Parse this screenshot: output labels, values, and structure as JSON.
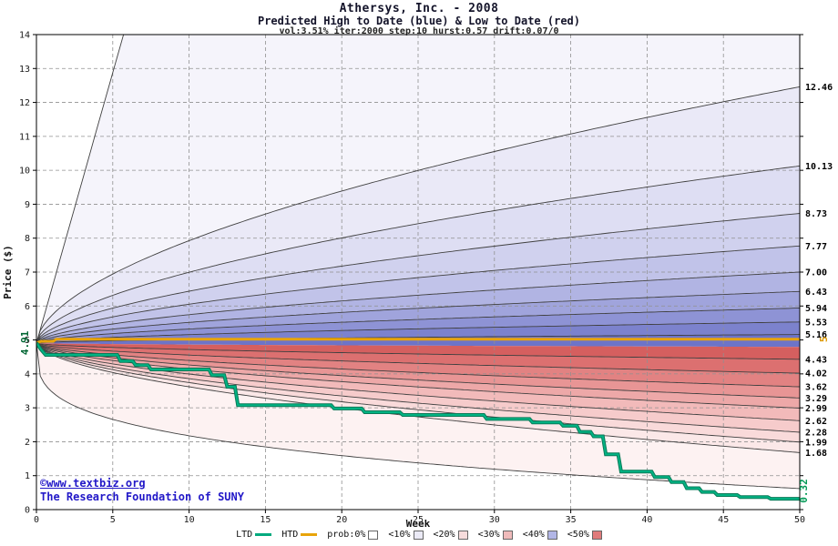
{
  "header": {
    "title": "Athersys, Inc. - 2008",
    "subtitle": "Predicted High to Date (blue) & Low to Date (red)",
    "params": "vol:3.51% iter:2000 step:10 hurst:0.57 drift:0.07/0"
  },
  "copyright": {
    "line1": "©www.textbiz.org",
    "line2": "The Research Foundation of SUNY"
  },
  "legend": {
    "items": [
      {
        "label": "LTD",
        "type": "line",
        "color": "#00aa7e"
      },
      {
        "label": "HTD",
        "type": "line",
        "color": "#e8a40a"
      },
      {
        "label": "prob:0%",
        "type": "box",
        "color": "#ffffff"
      },
      {
        "label": "<10%",
        "type": "box",
        "color": "#ebeaf6"
      },
      {
        "label": "<20%",
        "type": "box",
        "color": "#f7dcdc"
      },
      {
        "label": "<30%",
        "type": "box",
        "color": "#efbaba"
      },
      {
        "label": "<40%",
        "type": "box",
        "color": "#b2b6e6"
      },
      {
        "label": "<50%",
        "type": "box",
        "color": "#e07b7b"
      }
    ]
  },
  "chart_data": {
    "type": "line",
    "subtype": "probability-fan",
    "title": "Athersys, Inc. - 2008",
    "subtitle": "Predicted High to Date (blue) & Low to Date (red)",
    "params_note": "vol:3.51% iter:2000 step:10 hurst:0.57 drift:0.07/0",
    "xlabel": "Week",
    "ylabel": "Price ($)",
    "x_max": 50,
    "y_max": 14,
    "x_ticks": [
      0,
      5,
      10,
      15,
      20,
      25,
      30,
      35,
      40,
      45,
      50
    ],
    "y_ticks": [
      0,
      1,
      2,
      3,
      4,
      5,
      6,
      7,
      8,
      9,
      10,
      11,
      12,
      13,
      14
    ],
    "start_price": 4.91,
    "hurst_exponent": 0.57,
    "high_labels": [
      "12.46",
      "10.13",
      "8.73",
      "7.77",
      "7.00",
      "6.43",
      "5.94",
      "5.53",
      "5.16"
    ],
    "low_labels": [
      "4.43",
      "4.02",
      "3.62",
      "3.29",
      "2.99",
      "2.62",
      "2.28",
      "1.99",
      "1.68"
    ],
    "envelope_top": {
      "end": 84.6,
      "exp": 1.0
    },
    "center": {
      "end": 4.795,
      "exp": 0.57
    },
    "envelope_bottom": {
      "end": 0.62,
      "exp": 0.28
    },
    "band_colors_high": [
      "#f5f4fb",
      "#eae9f7",
      "#dedef3",
      "#d0d1ee",
      "#c1c3e9",
      "#b1b4e3",
      "#a0a4dc",
      "#8e93d5",
      "#7c82cd",
      "#6d74c8"
    ],
    "band_colors_low": [
      "#d55f5f",
      "#dc7070",
      "#e28282",
      "#e89595",
      "#eda8a8",
      "#f2baba",
      "#f6cbcb",
      "#f9dada",
      "#fbe8e8",
      "#fdf2f2"
    ],
    "line_color": "#404040",
    "grid_color": "#909090",
    "htd": {
      "name": "HTD",
      "color": "#e8a40a",
      "points": [
        [
          0,
          4.91
        ],
        [
          0.3,
          4.96
        ],
        [
          1.1,
          4.96
        ],
        [
          1.3,
          5.02
        ],
        [
          50,
          5.02
        ]
      ]
    },
    "ltd": {
      "name": "LTD",
      "color": "#00b383",
      "casing": "#0a7a58",
      "points": [
        [
          0,
          4.91
        ],
        [
          0.3,
          4.72
        ],
        [
          0.6,
          4.56
        ],
        [
          5.3,
          4.56
        ],
        [
          5.5,
          4.38
        ],
        [
          6.3,
          4.38
        ],
        [
          6.5,
          4.26
        ],
        [
          7.3,
          4.26
        ],
        [
          7.5,
          4.13
        ],
        [
          11.3,
          4.13
        ],
        [
          11.5,
          3.96
        ],
        [
          12.3,
          3.96
        ],
        [
          12.5,
          3.62
        ],
        [
          13.0,
          3.62
        ],
        [
          13.2,
          3.08
        ],
        [
          19.3,
          3.08
        ],
        [
          19.5,
          2.98
        ],
        [
          21.3,
          2.98
        ],
        [
          21.5,
          2.87
        ],
        [
          23.8,
          2.87
        ],
        [
          24.0,
          2.79
        ],
        [
          29.3,
          2.79
        ],
        [
          29.5,
          2.67
        ],
        [
          32.3,
          2.67
        ],
        [
          32.5,
          2.57
        ],
        [
          34.3,
          2.57
        ],
        [
          34.5,
          2.47
        ],
        [
          35.4,
          2.47
        ],
        [
          35.6,
          2.29
        ],
        [
          36.3,
          2.29
        ],
        [
          36.5,
          2.16
        ],
        [
          37.1,
          2.16
        ],
        [
          37.3,
          1.63
        ],
        [
          38.1,
          1.63
        ],
        [
          38.3,
          1.12
        ],
        [
          40.3,
          1.12
        ],
        [
          40.5,
          0.96
        ],
        [
          41.4,
          0.96
        ],
        [
          41.6,
          0.81
        ],
        [
          42.4,
          0.81
        ],
        [
          42.6,
          0.63
        ],
        [
          43.4,
          0.63
        ],
        [
          43.6,
          0.52
        ],
        [
          44.4,
          0.52
        ],
        [
          44.6,
          0.43
        ],
        [
          45.9,
          0.43
        ],
        [
          46.1,
          0.37
        ],
        [
          47.9,
          0.37
        ],
        [
          48.1,
          0.32
        ],
        [
          50,
          0.32
        ]
      ]
    },
    "annotations": {
      "start": {
        "text": "4.91",
        "color": "#006633",
        "price": 4.91
      },
      "htd_final": {
        "text": "5",
        "color": "#dd9900",
        "price": 5.02
      },
      "ltd_final": {
        "text": "0.32",
        "color": "#009955",
        "price": 0.55
      }
    }
  }
}
